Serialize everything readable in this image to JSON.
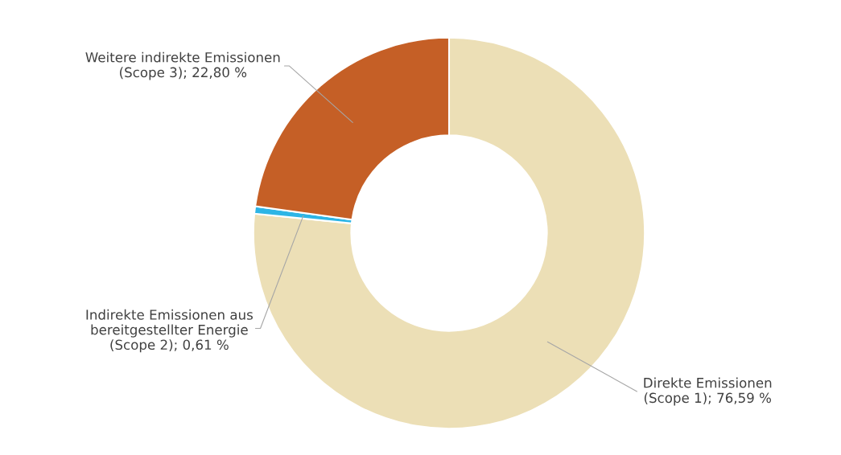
{
  "chart_data": {
    "type": "donut",
    "categories": [
      "Direkte Emissionen\n(Scope 1)",
      "Indirekte Emissionen aus\nbereitgestellter Energie\n(Scope 2)",
      "Weitere indirekte Emissionen\n(Scope 3)"
    ],
    "values": [
      76.59,
      0.61,
      22.8
    ],
    "value_labels": [
      "76,59 %",
      "0,61 %",
      "22,80 %"
    ],
    "colors": [
      "#ecdfb6",
      "#2db5e6",
      "#c55f26"
    ],
    "legend": false
  }
}
